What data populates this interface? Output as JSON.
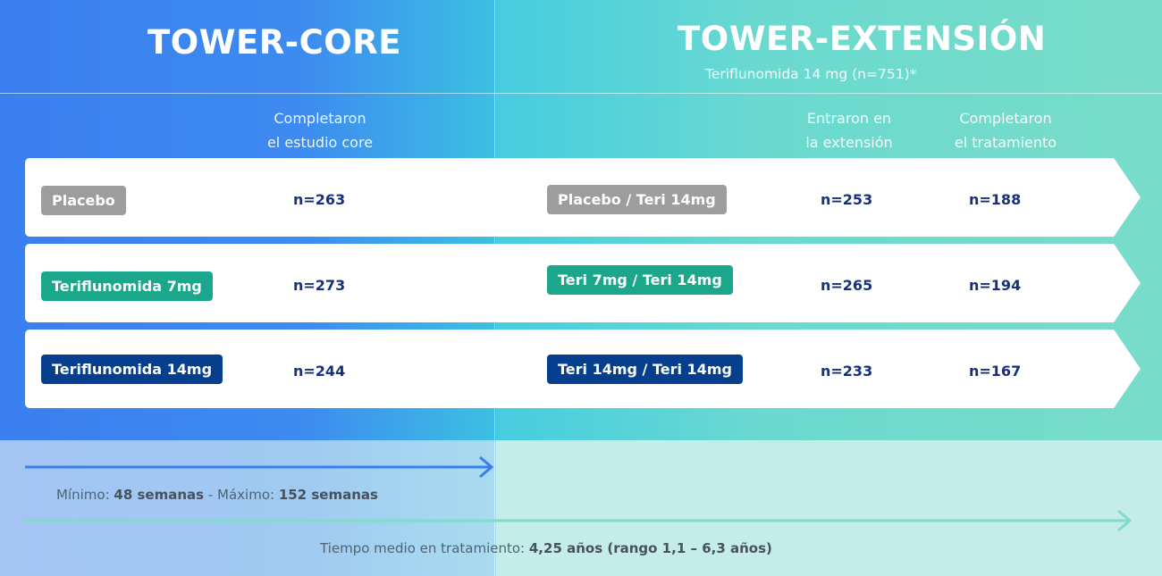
{
  "core": {
    "title": "TOWER-CORE",
    "column_header": [
      "Completaron",
      "el estudio core"
    ],
    "duration": {
      "min_label": "Mínimo: ",
      "min_value": "48 semanas",
      "separator": " - Máximo: ",
      "max_value": "152 semanas"
    }
  },
  "extension": {
    "title": "TOWER-EXTENSIÓN",
    "subtitle": "Teriflunomida 14 mg (n=751)*",
    "column_headers": [
      [
        "Entraron en",
        "la extensión"
      ],
      [
        "Completaron",
        "el tratamiento"
      ]
    ],
    "duration": {
      "label": "Tiempo medio en tratamiento: ",
      "value": "4,25 años (rango 1,1 – 6,3 años)"
    }
  },
  "rows": [
    {
      "core_label": "Placebo",
      "core_n": "n=263",
      "ext_label": "Placebo / Teri 14mg",
      "ext_entered": "n=253",
      "ext_completed": "n=188",
      "color": "#9d9d9d"
    },
    {
      "core_label": "Teriflunomida 7mg",
      "core_n": "n=273",
      "ext_label": "Teri 7mg / Teri 14mg",
      "ext_entered": "n=265",
      "ext_completed": "n=194",
      "color": "#1aa78b"
    },
    {
      "core_label": "Teriflunomida 14mg",
      "core_n": "n=244",
      "ext_label": "Teri 14mg / Teri 14mg",
      "ext_entered": "n=233",
      "ext_completed": "n=167",
      "color": "#053f8e"
    }
  ],
  "colors": {
    "core_blue": "#3a7fef",
    "extension_teal": "#79dcc9",
    "value_text": "#17327a",
    "arrow_core": "#3a7fef",
    "arrow_ext": "#7fdcc8"
  }
}
